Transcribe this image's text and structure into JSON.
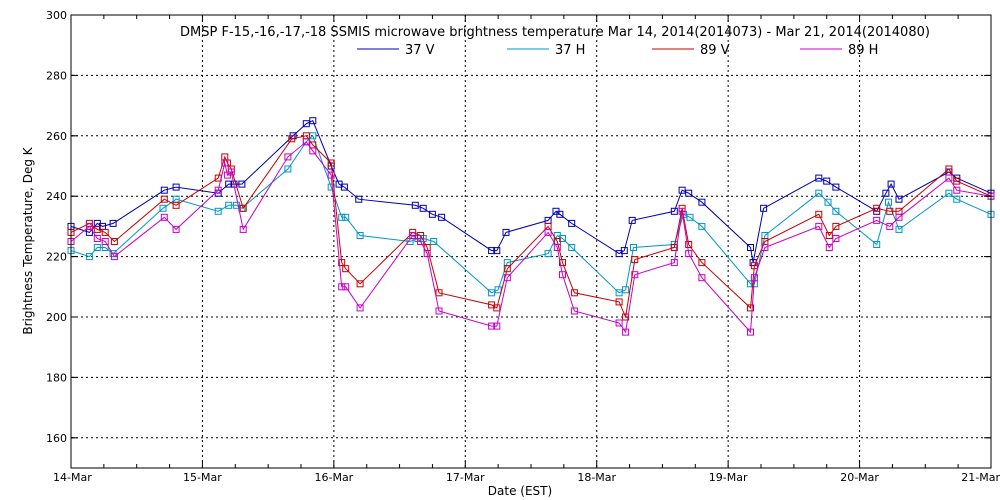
{
  "chart_data": {
    "type": "line",
    "title": "DMSP F-15,-16,-17,-18 SSMIS microwave brightness temperature Mar 14, 2014(2014073) - Mar 21, 2014(2014080)",
    "xlabel": "Date (EST)",
    "ylabel": "Brightness Temperature, Deg K",
    "xlim": [
      0,
      7
    ],
    "ylim": [
      150,
      300
    ],
    "x_ticks": [
      {
        "value": 0,
        "label": "14-Mar"
      },
      {
        "value": 1,
        "label": "15-Mar"
      },
      {
        "value": 2,
        "label": "16-Mar"
      },
      {
        "value": 3,
        "label": "17-Mar"
      },
      {
        "value": 4,
        "label": "18-Mar"
      },
      {
        "value": 5,
        "label": "19-Mar"
      },
      {
        "value": 6,
        "label": "20-Mar"
      },
      {
        "value": 7,
        "label": "21-Mar"
      }
    ],
    "y_ticks": [
      160,
      180,
      200,
      220,
      240,
      260,
      280,
      300
    ],
    "grid": true,
    "legend_position": "top",
    "series": [
      {
        "name": "37 V",
        "color": "#0000b4",
        "x": [
          0.0,
          0.14,
          0.2,
          0.24,
          0.32,
          0.71,
          0.8,
          1.12,
          1.2,
          1.24,
          1.3,
          1.69,
          1.79,
          1.84,
          1.98,
          2.04,
          2.08,
          2.19,
          2.62,
          2.68,
          2.75,
          2.82,
          3.2,
          3.24,
          3.31,
          3.63,
          3.69,
          3.72,
          3.81,
          4.17,
          4.21,
          4.27,
          4.59,
          4.65,
          4.7,
          4.8,
          5.17,
          5.19,
          5.27,
          5.69,
          5.75,
          5.82,
          6.13,
          6.2,
          6.24,
          6.3,
          6.68,
          6.74,
          7.0
        ],
        "values": [
          230,
          228,
          231,
          230,
          231,
          242,
          243,
          241,
          244,
          244,
          244,
          260,
          264,
          265,
          250,
          244,
          243,
          239,
          237,
          236,
          234,
          233,
          222,
          222,
          228,
          232,
          235,
          234,
          231,
          221,
          222,
          232,
          235,
          242,
          241,
          238,
          223,
          218,
          236,
          246,
          245,
          243,
          235,
          241,
          244,
          239,
          248,
          246,
          241
        ]
      },
      {
        "name": "37 H",
        "color": "#0096c8",
        "x": [
          0.0,
          0.14,
          0.2,
          0.26,
          0.32,
          0.7,
          0.8,
          1.12,
          1.2,
          1.26,
          1.3,
          1.65,
          1.79,
          1.84,
          1.98,
          2.06,
          2.09,
          2.2,
          2.58,
          2.64,
          2.68,
          2.76,
          3.2,
          3.25,
          3.32,
          3.63,
          3.7,
          3.74,
          3.81,
          4.17,
          4.22,
          4.28,
          4.59,
          4.66,
          4.71,
          4.8,
          5.17,
          5.2,
          5.28,
          5.69,
          5.76,
          5.82,
          6.13,
          6.22,
          6.3,
          6.68,
          6.74,
          7.0
        ],
        "values": [
          222,
          220,
          223,
          223,
          221,
          236,
          239,
          235,
          237,
          237,
          236,
          249,
          258,
          260,
          243,
          233,
          233,
          227,
          225,
          226,
          226,
          225,
          208,
          209,
          218,
          221,
          227,
          226,
          223,
          208,
          209,
          223,
          224,
          234,
          233,
          230,
          211,
          211,
          227,
          241,
          238,
          235,
          224,
          238,
          229,
          241,
          239,
          234
        ]
      },
      {
        "name": "89 V",
        "color": "#c80000",
        "x": [
          0.0,
          0.14,
          0.2,
          0.26,
          0.33,
          0.71,
          0.8,
          1.12,
          1.17,
          1.19,
          1.22,
          1.31,
          1.68,
          1.79,
          1.84,
          1.98,
          2.06,
          2.09,
          2.2,
          2.6,
          2.66,
          2.71,
          2.8,
          3.2,
          3.24,
          3.32,
          3.63,
          3.7,
          3.74,
          3.83,
          4.17,
          4.22,
          4.29,
          4.59,
          4.65,
          4.7,
          4.8,
          5.17,
          5.2,
          5.28,
          5.69,
          5.77,
          5.82,
          6.13,
          6.23,
          6.3,
          6.68,
          6.74,
          7.0
        ],
        "values": [
          228,
          231,
          229,
          228,
          225,
          239,
          237,
          246,
          253,
          251,
          249,
          236,
          259,
          260,
          257,
          251,
          218,
          216,
          211,
          228,
          227,
          223,
          208,
          204,
          203,
          216,
          230,
          225,
          218,
          208,
          205,
          200,
          219,
          223,
          236,
          224,
          218,
          203,
          217,
          225,
          234,
          227,
          230,
          236,
          235,
          235,
          249,
          245,
          240
        ]
      },
      {
        "name": "89 H",
        "color": "#c800c8",
        "x": [
          0.0,
          0.14,
          0.2,
          0.26,
          0.33,
          0.71,
          0.8,
          1.12,
          1.17,
          1.19,
          1.22,
          1.31,
          1.65,
          1.79,
          1.84,
          1.98,
          2.06,
          2.09,
          2.2,
          2.6,
          2.66,
          2.71,
          2.8,
          3.2,
          3.24,
          3.32,
          3.63,
          3.7,
          3.74,
          3.83,
          4.17,
          4.22,
          4.29,
          4.59,
          4.65,
          4.7,
          4.8,
          5.17,
          5.2,
          5.28,
          5.69,
          5.77,
          5.82,
          6.13,
          6.23,
          6.3,
          6.68,
          6.74,
          7.0
        ],
        "values": [
          225,
          230,
          226,
          225,
          220,
          233,
          229,
          242,
          251,
          247,
          248,
          229,
          253,
          258,
          255,
          247,
          210,
          210,
          203,
          227,
          225,
          221,
          202,
          197,
          197,
          213,
          228,
          223,
          214,
          202,
          198,
          195,
          214,
          218,
          235,
          221,
          213,
          195,
          213,
          223,
          230,
          223,
          226,
          232,
          230,
          233,
          246,
          242,
          240
        ]
      }
    ]
  }
}
